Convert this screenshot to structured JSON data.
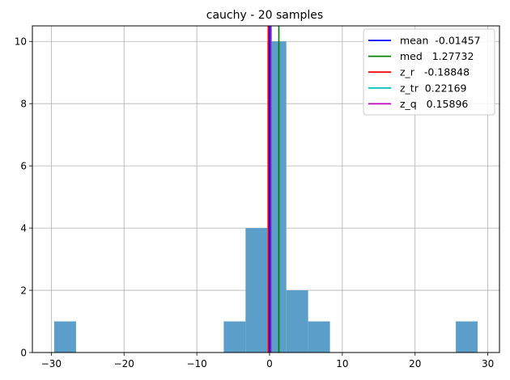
{
  "chart_data": {
    "type": "bar",
    "title": "cauchy - 20 samples",
    "xlabel": "",
    "ylabel": "",
    "xlim": [
      -32.6,
      31.6
    ],
    "ylim": [
      0,
      10.5
    ],
    "grid": true,
    "legend_position": "top-right",
    "x_ticks": [
      -30,
      -20,
      -10,
      0,
      10,
      20,
      30
    ],
    "y_ticks": [
      0,
      2,
      4,
      6,
      8,
      10
    ],
    "bar_color": "#5a9ec9",
    "bins": [
      {
        "x0": -29.6,
        "x1": -26.6,
        "count": 1
      },
      {
        "x0": -6.3,
        "x1": -3.3,
        "count": 1
      },
      {
        "x0": -3.3,
        "x1": -0.3,
        "count": 4
      },
      {
        "x0": -0.3,
        "x1": 2.3,
        "count": 10
      },
      {
        "x0": 2.3,
        "x1": 5.3,
        "count": 2
      },
      {
        "x0": 5.3,
        "x1": 8.3,
        "count": 1
      },
      {
        "x0": 25.6,
        "x1": 28.6,
        "count": 1
      }
    ],
    "series": [
      {
        "name": "mean  -0.01457",
        "value": -0.01457,
        "color": "#0000ff"
      },
      {
        "name": "med   1.27732",
        "value": 1.27732,
        "color": "#008000"
      },
      {
        "name": "z_r   -0.18848",
        "value": -0.18848,
        "color": "#ff0000"
      },
      {
        "name": "z_tr  0.22169",
        "value": 0.22169,
        "color": "#00bfbf"
      },
      {
        "name": "z_q   0.15896",
        "value": 0.15896,
        "color": "#bf00bf"
      }
    ]
  }
}
